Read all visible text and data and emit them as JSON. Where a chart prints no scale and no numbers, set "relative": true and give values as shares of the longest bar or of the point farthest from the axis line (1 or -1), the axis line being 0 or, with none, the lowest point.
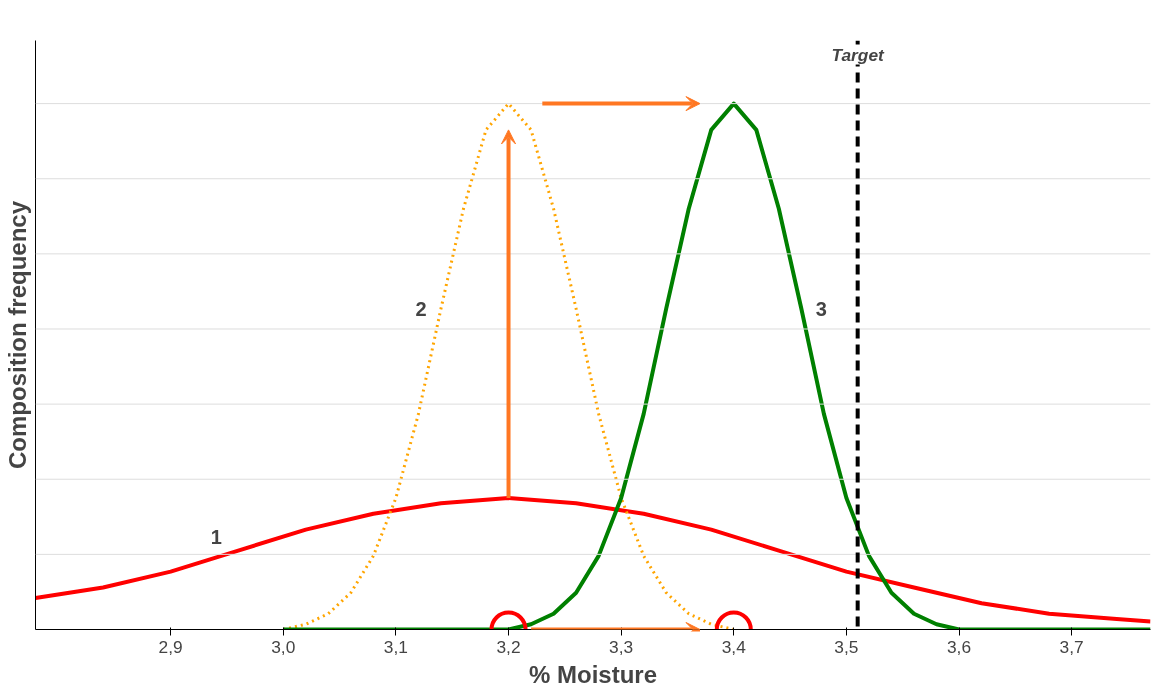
{
  "chart_data": {
    "type": "line",
    "relative": true,
    "xlabel": "% Moisture",
    "ylabel": "Composition frequency",
    "xlim": [
      2.78,
      3.77
    ],
    "xticks": [
      {
        "value": 2.9,
        "label": "2,9"
      },
      {
        "value": 3.0,
        "label": "3,0"
      },
      {
        "value": 3.1,
        "label": "3,1"
      },
      {
        "value": 3.2,
        "label": "3,2"
      },
      {
        "value": 3.3,
        "label": "3,3"
      },
      {
        "value": 3.4,
        "label": "3,4"
      },
      {
        "value": 3.5,
        "label": "3,5"
      },
      {
        "value": 3.6,
        "label": "3,6"
      },
      {
        "value": 3.7,
        "label": "3,7"
      }
    ],
    "grid": "y",
    "marker": "none",
    "series": [
      {
        "name": "1",
        "color": "#ff0000",
        "line_style": "solid",
        "x": [
          2.78,
          2.84,
          2.9,
          2.96,
          3.02,
          3.08,
          3.14,
          3.2,
          3.26,
          3.32,
          3.38,
          3.44,
          3.5,
          3.56,
          3.62,
          3.68,
          3.74,
          3.77
        ],
        "values": [
          0.06,
          0.08,
          0.11,
          0.15,
          0.19,
          0.22,
          0.24,
          0.25,
          0.24,
          0.22,
          0.19,
          0.15,
          0.11,
          0.08,
          0.05,
          0.03,
          0.02,
          0.015
        ]
      },
      {
        "name": "2",
        "color": "#ffa500",
        "line_style": "dotted",
        "x": [
          3.0,
          3.02,
          3.04,
          3.06,
          3.08,
          3.1,
          3.12,
          3.14,
          3.16,
          3.18,
          3.2,
          3.22,
          3.24,
          3.26,
          3.28,
          3.3,
          3.32,
          3.34,
          3.36,
          3.38,
          3.4
        ],
        "values": [
          0.0,
          0.01,
          0.03,
          0.07,
          0.14,
          0.25,
          0.41,
          0.61,
          0.8,
          0.95,
          1.0,
          0.95,
          0.8,
          0.61,
          0.41,
          0.25,
          0.14,
          0.07,
          0.03,
          0.01,
          0.0
        ]
      },
      {
        "name": "3",
        "color": "#008000",
        "line_style": "solid",
        "x": [
          3.0,
          3.1,
          3.2,
          3.22,
          3.24,
          3.26,
          3.28,
          3.3,
          3.32,
          3.34,
          3.36,
          3.38,
          3.4,
          3.42,
          3.44,
          3.46,
          3.48,
          3.5,
          3.52,
          3.54,
          3.56,
          3.58,
          3.6,
          3.7,
          3.77
        ],
        "values": [
          0.0,
          0.0,
          0.0,
          0.01,
          0.03,
          0.07,
          0.14,
          0.25,
          0.41,
          0.61,
          0.8,
          0.95,
          1.0,
          0.95,
          0.8,
          0.61,
          0.41,
          0.25,
          0.14,
          0.07,
          0.03,
          0.01,
          0.0,
          0.0,
          0.0
        ]
      }
    ],
    "ref_lines": [
      {
        "axis": "x",
        "value": 3.51,
        "label": "Target",
        "color": "#000000",
        "line_style": "dashed"
      }
    ]
  }
}
